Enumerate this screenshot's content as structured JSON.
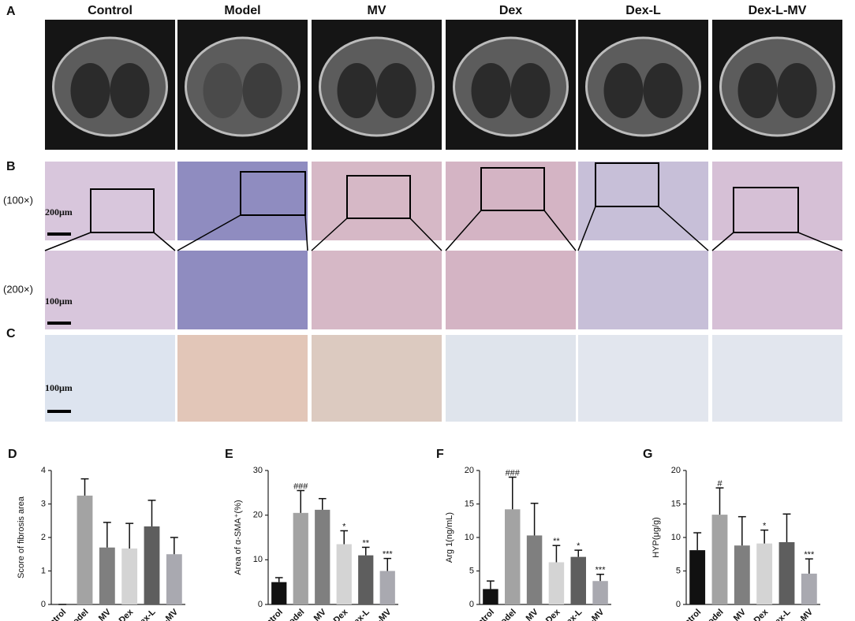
{
  "panel_labels": [
    "A",
    "B",
    "C"
  ],
  "columns": [
    "Control",
    "Model",
    "MV",
    "Dex",
    "Dex-L",
    "Dex-L-MV"
  ],
  "row_labels": [
    "(100×)",
    "(200×)"
  ],
  "scale_bars": [
    "200μm",
    "100μm",
    "100μm"
  ],
  "chart_data": [
    {
      "type": "bar",
      "label": "D",
      "y_label": "Score of fibrosis area",
      "categories": [
        "Control",
        "model",
        "MV",
        "Dex",
        "Dex-L",
        "Dex-L-MV"
      ],
      "values": [
        0,
        3.25,
        1.7,
        1.67,
        2.33,
        1.5
      ],
      "errors": [
        0,
        0.5,
        0.75,
        0.75,
        0.78,
        0.5
      ],
      "annotations": [
        null,
        null,
        null,
        null,
        null,
        null
      ],
      "colors": [
        "#111111",
        "#a3a3a3",
        "#7f7f7f",
        "#d4d4d4",
        "#5e5e5e",
        "#a9a9b0"
      ],
      "ylim": [
        0,
        4
      ],
      "yticks": [
        0,
        1,
        2,
        3,
        4
      ]
    },
    {
      "type": "bar",
      "label": "E",
      "y_label": "Area of α-SMA⁺(%)",
      "categories": [
        "Control",
        "Model",
        "MV",
        "Dex",
        "Dex-L",
        "Dex-L-MV"
      ],
      "values": [
        5,
        20.5,
        21.2,
        13.5,
        11,
        7.5
      ],
      "errors": [
        1,
        5,
        2.5,
        3,
        1.8,
        2.8
      ],
      "annotations": [
        null,
        "###",
        null,
        "*",
        "**",
        "***"
      ],
      "colors": [
        "#111111",
        "#a3a3a3",
        "#7f7f7f",
        "#d4d4d4",
        "#5e5e5e",
        "#a9a9b0"
      ],
      "ylim": [
        0,
        30
      ],
      "yticks": [
        0,
        10,
        20,
        30
      ]
    },
    {
      "type": "bar",
      "label": "F",
      "y_label": "Arg 1(ng/mL)",
      "categories": [
        "Control",
        "Model",
        "MV",
        "Dex",
        "Dex-L",
        "Dex-L-MV"
      ],
      "values": [
        2.3,
        14.2,
        10.3,
        6.3,
        7.1,
        3.5
      ],
      "errors": [
        1.2,
        4.8,
        4.8,
        2.5,
        1,
        1
      ],
      "annotations": [
        null,
        "###",
        null,
        "**",
        "*",
        "***"
      ],
      "colors": [
        "#111111",
        "#a3a3a3",
        "#7f7f7f",
        "#d4d4d4",
        "#5e5e5e",
        "#a9a9b0"
      ],
      "ylim": [
        0,
        20
      ],
      "yticks": [
        0,
        5,
        10,
        15,
        20
      ]
    },
    {
      "type": "bar",
      "label": "G",
      "y_label": "HYP(μg/g)",
      "categories": [
        "control",
        "Model",
        "MV",
        "Dex",
        "Dex-L",
        "Dex-L-MV"
      ],
      "values": [
        8.1,
        13.4,
        8.8,
        9.1,
        9.3,
        4.6
      ],
      "errors": [
        2.6,
        4,
        4.3,
        2,
        4.2,
        2.2
      ],
      "annotations": [
        null,
        "#",
        null,
        "*",
        null,
        "***"
      ],
      "colors": [
        "#111111",
        "#a3a3a3",
        "#7f7f7f",
        "#d4d4d4",
        "#5e5e5e",
        "#a9a9b0"
      ],
      "ylim": [
        0,
        20
      ],
      "yticks": [
        0,
        5,
        10,
        15,
        20
      ]
    }
  ]
}
